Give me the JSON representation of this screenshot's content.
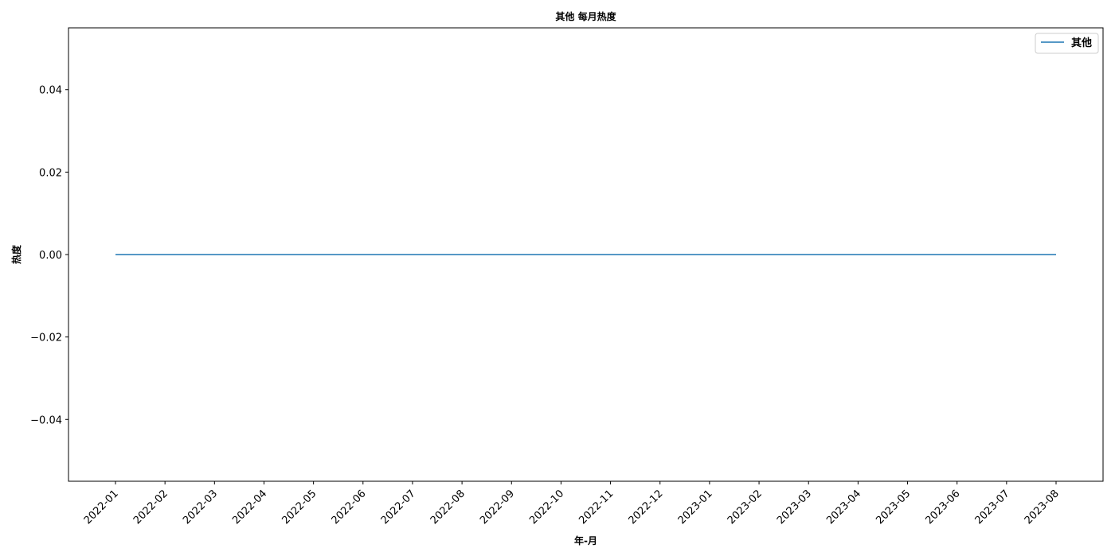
{
  "chart_data": {
    "type": "line",
    "title": "其他 每月热度",
    "xlabel": "年-月",
    "ylabel": "热度",
    "x": [
      "2022-01",
      "2022-02",
      "2022-03",
      "2022-04",
      "2022-05",
      "2022-06",
      "2022-07",
      "2022-08",
      "2022-09",
      "2022-10",
      "2022-11",
      "2022-12",
      "2023-01",
      "2023-02",
      "2023-03",
      "2023-04",
      "2023-05",
      "2023-06",
      "2023-07",
      "2023-08"
    ],
    "series": [
      {
        "name": "其他",
        "color": "#1f77b4",
        "values": [
          0,
          0,
          0,
          0,
          0,
          0,
          0,
          0,
          0,
          0,
          0,
          0,
          0,
          0,
          0,
          0,
          0,
          0,
          0,
          0
        ]
      }
    ],
    "ylim": [
      -0.055,
      0.055
    ],
    "yticks": [
      0.04,
      0.02,
      0.0,
      -0.02,
      -0.04
    ],
    "ytick_labels": [
      "0.04",
      "0.02",
      "0.00",
      "−0.02",
      "−0.04"
    ],
    "grid": false,
    "legend_position": "top-right"
  }
}
